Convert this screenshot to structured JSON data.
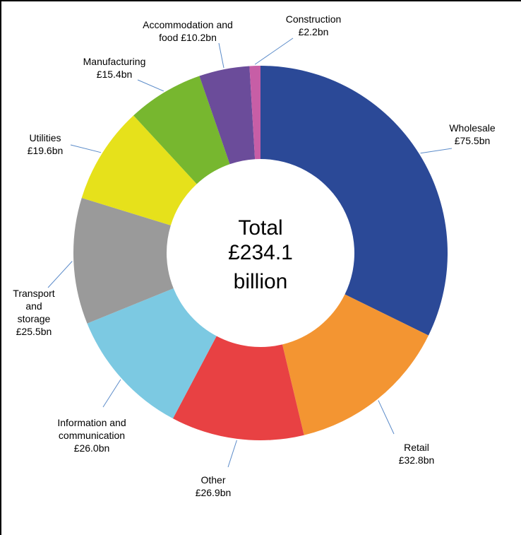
{
  "chart_data": {
    "type": "pie",
    "subtype": "donut",
    "title": "",
    "center_text": [
      "Total",
      "£234.1",
      "billion"
    ],
    "total": 234.1,
    "unit": "£bn",
    "start_angle": "12 o'clock, clockwise",
    "categories": [
      "Wholesale",
      "Retail",
      "Other",
      "Information and communication",
      "Transport and storage",
      "Utilities",
      "Manufacturing",
      "Accommodation and food",
      "Construction"
    ],
    "values": [
      75.5,
      32.8,
      26.9,
      26.0,
      25.5,
      19.6,
      15.4,
      10.2,
      2.2
    ],
    "colors": [
      "#2B4997",
      "#F39532",
      "#E84143",
      "#7CC9E2",
      "#9A9A9A",
      "#E6E11B",
      "#77B72F",
      "#6B4C9A",
      "#C75EA6"
    ],
    "labels": [
      [
        "Wholesale",
        "£75.5bn"
      ],
      [
        "Retail",
        "£32.8bn"
      ],
      [
        "Other",
        "£26.9bn"
      ],
      [
        "Information and",
        "communication",
        "£26.0bn"
      ],
      [
        "Transport",
        "and",
        "storage",
        "£25.5bn"
      ],
      [
        "Utilities",
        "£19.6bn"
      ],
      [
        "Manufacturing",
        "£15.4bn"
      ],
      [
        "Accommodation and",
        "food £10.2bn"
      ],
      [
        "Construction",
        "£2.2bn"
      ]
    ],
    "legend": "none (data labels with leader lines)"
  }
}
